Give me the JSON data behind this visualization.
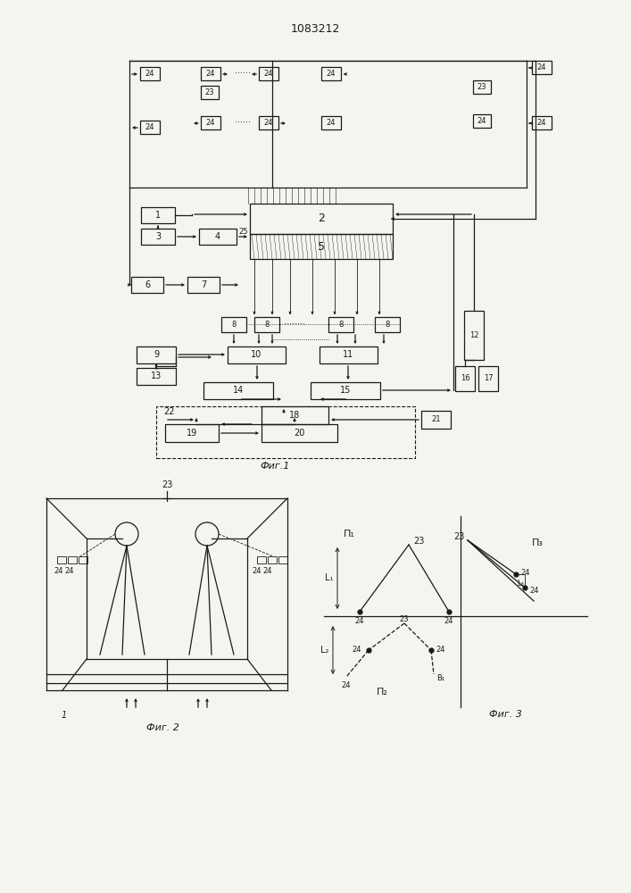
{
  "title": "1083212",
  "bg": "#f5f5f0",
  "lc": "#1a1a1a",
  "fig1_label": "Фиг.1",
  "fig2_label": "Фиг. 2",
  "fig3_label": "Фиг. 3"
}
